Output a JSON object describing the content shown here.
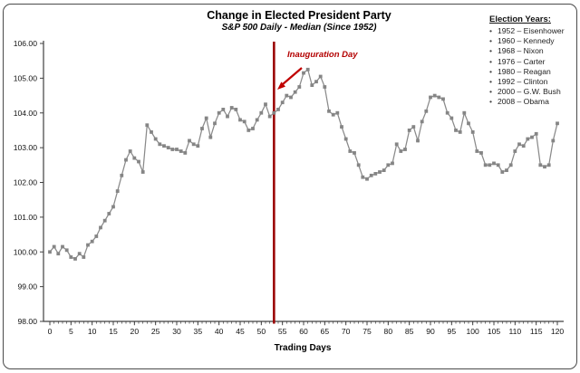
{
  "header": {
    "title": "Change in Elected President Party",
    "subtitle": "S&P 500 Daily - Median (Since 1952)"
  },
  "legend": {
    "title": "Election Years:",
    "bullet": "•",
    "items": [
      "1952 – Eisenhower",
      "1960 – Kennedy",
      "1968 – Nixon",
      "1976 – Carter",
      "1980 – Reagan",
      "1992 – Clinton",
      "2000 – G.W. Bush",
      "2008 – Obama"
    ]
  },
  "chart_data": {
    "type": "line",
    "title": "Change in Elected President Party",
    "subtitle": "S&P 500 Daily - Median (Since 1952)",
    "xlabel": "Trading Days",
    "ylim": [
      98,
      106
    ],
    "y_ticks": [
      98,
      99,
      100,
      101,
      102,
      103,
      104,
      105,
      106
    ],
    "x_range": [
      0,
      120
    ],
    "x_step": 1,
    "x_major_ticks": [
      0,
      5,
      10,
      15,
      20,
      25,
      30,
      35,
      40,
      45,
      50,
      55,
      60,
      65,
      70,
      75,
      80,
      85,
      90,
      95,
      100,
      105,
      110,
      115,
      120
    ],
    "grid": "off",
    "legend_position": "top-right",
    "line_color": "#8a8a8a",
    "marker": "square",
    "marker_color": "#858585",
    "axis_color": "#404040",
    "vline": {
      "x": 53,
      "color": "#9b0404",
      "label": "Inauguration Day",
      "label_color": "#b30000",
      "arrow_color": "#c00000"
    },
    "values": [
      100.0,
      100.15,
      99.95,
      100.15,
      100.05,
      99.85,
      99.8,
      99.95,
      99.85,
      100.2,
      100.3,
      100.45,
      100.7,
      100.9,
      101.1,
      101.3,
      101.75,
      102.2,
      102.65,
      102.9,
      102.7,
      102.6,
      102.3,
      103.65,
      103.45,
      103.25,
      103.1,
      103.05,
      103.0,
      102.95,
      102.95,
      102.9,
      102.85,
      103.2,
      103.1,
      103.05,
      103.55,
      103.85,
      103.3,
      103.7,
      104.0,
      104.1,
      103.9,
      104.15,
      104.1,
      103.8,
      103.75,
      103.5,
      103.55,
      103.8,
      104.0,
      104.25,
      103.9,
      104.0,
      104.1,
      104.3,
      104.5,
      104.45,
      104.6,
      104.75,
      105.15,
      105.25,
      104.8,
      104.9,
      105.05,
      104.75,
      104.05,
      103.95,
      104.0,
      103.6,
      103.25,
      102.9,
      102.85,
      102.5,
      102.15,
      102.1,
      102.2,
      102.25,
      102.3,
      102.35,
      102.5,
      102.55,
      103.1,
      102.9,
      102.95,
      103.5,
      103.6,
      103.2,
      103.75,
      104.05,
      104.45,
      104.5,
      104.45,
      104.4,
      104.0,
      103.85,
      103.5,
      103.45,
      104.0,
      103.7,
      103.45,
      102.9,
      102.85,
      102.5,
      102.5,
      102.55,
      102.5,
      102.3,
      102.35,
      102.5,
      102.9,
      103.1,
      103.05,
      103.25,
      103.3,
      103.4,
      102.5,
      102.45,
      102.5,
      103.2,
      103.7
    ]
  }
}
